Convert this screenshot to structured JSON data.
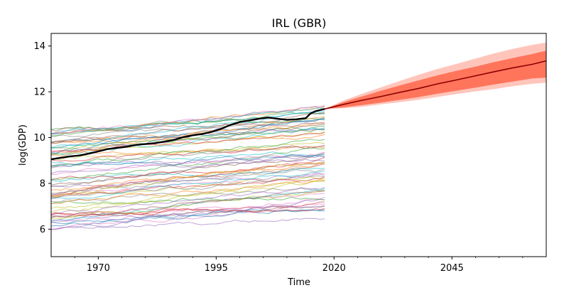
{
  "chart_data": {
    "type": "line",
    "title": "IRL (GBR)",
    "xlabel": "Time",
    "ylabel": "log(GDP)",
    "xlim": [
      1960,
      2065
    ],
    "ylim": [
      4.8,
      14.55
    ],
    "x_ticks": [
      {
        "value": 1970,
        "label": "1970"
      },
      {
        "value": 1995,
        "label": "1995"
      },
      {
        "value": 2020,
        "label": "2020"
      },
      {
        "value": 2045,
        "label": "2045"
      }
    ],
    "y_ticks": [
      {
        "value": 6,
        "label": "6"
      },
      {
        "value": 8,
        "label": "8"
      },
      {
        "value": 10,
        "label": "10"
      },
      {
        "value": 12,
        "label": "12"
      },
      {
        "value": 14,
        "label": "14"
      }
    ],
    "grid": false,
    "legend": "none",
    "history_years": [
      1960,
      2018
    ],
    "background_series_count": 70,
    "background_start_range": [
      5.9,
      10.4
    ],
    "background_end_range": [
      6.5,
      11.3
    ],
    "background_colors": [
      "#1f77b4",
      "#ff7f0e",
      "#2ca02c",
      "#d62728",
      "#9467bd",
      "#8c564b",
      "#e377c2",
      "#7f7f7f",
      "#bcbd22",
      "#17becf"
    ],
    "highlight_series": {
      "color": "#000000",
      "x": [
        1960,
        1962,
        1964,
        1966,
        1968,
        1970,
        1972,
        1974,
        1976,
        1978,
        1980,
        1982,
        1984,
        1986,
        1988,
        1990,
        1992,
        1994,
        1996,
        1998,
        2000,
        2002,
        2004,
        2006,
        2008,
        2010,
        2012,
        2014,
        2015,
        2016,
        2018
      ],
      "y": [
        9.05,
        9.12,
        9.18,
        9.22,
        9.3,
        9.4,
        9.5,
        9.55,
        9.6,
        9.68,
        9.72,
        9.76,
        9.82,
        9.9,
        10.02,
        10.1,
        10.16,
        10.25,
        10.38,
        10.55,
        10.68,
        10.75,
        10.82,
        10.88,
        10.82,
        10.78,
        10.8,
        10.85,
        11.05,
        11.15,
        11.25
      ]
    },
    "forecast": {
      "color": "#ff5a3c",
      "median_color": "#8b0000",
      "x": [
        2018,
        2022,
        2026,
        2030,
        2034,
        2038,
        2042,
        2046,
        2050,
        2054,
        2058,
        2062,
        2065
      ],
      "median": [
        11.25,
        11.45,
        11.63,
        11.8,
        11.98,
        12.15,
        12.35,
        12.52,
        12.7,
        12.88,
        13.05,
        13.2,
        13.35
      ],
      "inner_lower": [
        11.25,
        11.32,
        11.42,
        11.53,
        11.65,
        11.77,
        11.92,
        12.05,
        12.18,
        12.32,
        12.45,
        12.58,
        12.62
      ],
      "inner_upper": [
        11.25,
        11.55,
        11.8,
        12.05,
        12.28,
        12.5,
        12.72,
        12.92,
        13.1,
        13.3,
        13.48,
        13.65,
        13.8
      ],
      "outer_lower": [
        11.25,
        11.28,
        11.35,
        11.45,
        11.55,
        11.65,
        11.78,
        11.9,
        12.02,
        12.12,
        12.25,
        12.35,
        12.4
      ],
      "outer_upper": [
        11.25,
        11.62,
        11.92,
        12.2,
        12.48,
        12.75,
        13.0,
        13.22,
        13.45,
        13.68,
        13.88,
        14.05,
        14.15
      ]
    }
  }
}
